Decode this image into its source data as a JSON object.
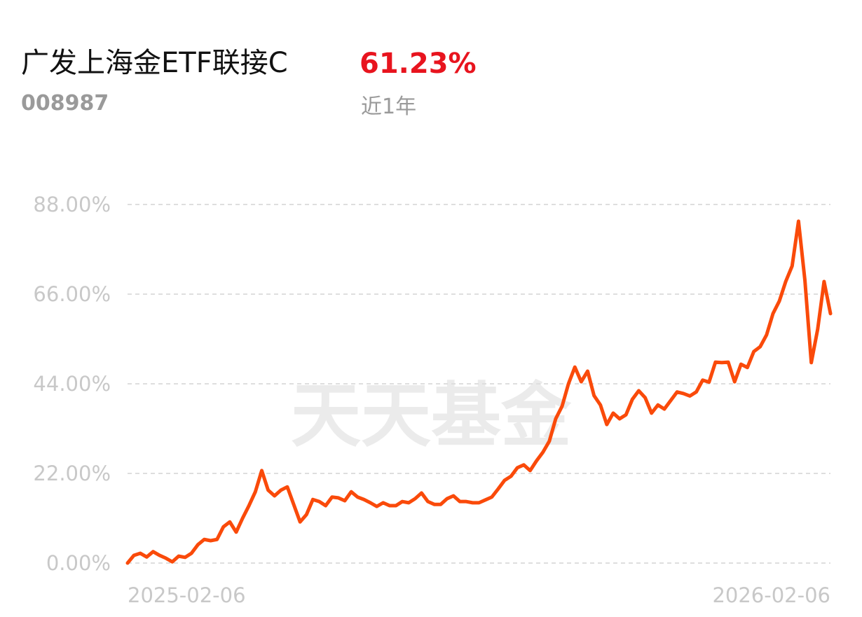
{
  "header": {
    "title": "广发上海金ETF联接C",
    "return": "61.23%",
    "code": "008987",
    "period": "近1年"
  },
  "chart_data": {
    "type": "line",
    "watermark": "天天基金",
    "color": "#fa4a0a",
    "grid": true,
    "ylim": [
      0,
      88
    ],
    "yticks": [
      {
        "value": 0,
        "label": "0.00%"
      },
      {
        "value": 22,
        "label": "22.00%"
      },
      {
        "value": 44,
        "label": "44.00%"
      },
      {
        "value": 66,
        "label": "66.00%"
      },
      {
        "value": 88,
        "label": "88.00%"
      }
    ],
    "categories": [
      "2025-02-06",
      null,
      null,
      null,
      null,
      null,
      null,
      null,
      null,
      null,
      null,
      null,
      null,
      null,
      null,
      null,
      null,
      null,
      null,
      null,
      null,
      null,
      null,
      null,
      null,
      null,
      null,
      null,
      null,
      null,
      null,
      null,
      null,
      null,
      null,
      null,
      null,
      null,
      null,
      null,
      null,
      null,
      null,
      null,
      null,
      null,
      null,
      null,
      null,
      null,
      null,
      null,
      null,
      null,
      null,
      null,
      null,
      null,
      null,
      null,
      null,
      null,
      null,
      null,
      null,
      null,
      null,
      null,
      null,
      null,
      null,
      null,
      null,
      null,
      null,
      null,
      null,
      null,
      null,
      null,
      null,
      null,
      null,
      null,
      null,
      null,
      null,
      null,
      null,
      null,
      null,
      null,
      null,
      null,
      null,
      null,
      null,
      null,
      null,
      null,
      null,
      null,
      null,
      null,
      null,
      null,
      null,
      null,
      null,
      null,
      "2026-02-06"
    ],
    "values": [
      0,
      1.9,
      2.4,
      1.5,
      2.8,
      1.9,
      1.2,
      0.3,
      1.7,
      1.4,
      2.4,
      4.5,
      5.8,
      5.5,
      5.8,
      8.9,
      10.1,
      7.6,
      11.0,
      14.1,
      17.5,
      22.7,
      17.9,
      16.5,
      17.9,
      18.7,
      14.4,
      10.1,
      11.9,
      15.6,
      15.1,
      14.1,
      16.2,
      16.0,
      15.3,
      17.5,
      16.2,
      15.6,
      14.8,
      13.9,
      14.8,
      14.1,
      14.1,
      15.1,
      14.8,
      15.8,
      17.2,
      15.1,
      14.4,
      14.4,
      15.8,
      16.5,
      15.1,
      15.1,
      14.8,
      14.8,
      15.5,
      16.2,
      18.2,
      20.3,
      21.3,
      23.4,
      24.1,
      22.7,
      25.1,
      27.2,
      29.9,
      35.4,
      38.5,
      44.0,
      48.1,
      44.5,
      47.1,
      41.1,
      38.8,
      34.0,
      36.8,
      35.4,
      36.4,
      40.2,
      42.3,
      40.6,
      36.8,
      38.8,
      37.8,
      39.9,
      42.0,
      41.6,
      41.0,
      42.0,
      44.9,
      44.4,
      49.3,
      49.2,
      49.3,
      44.5,
      48.8,
      48.0,
      51.9,
      53.1,
      56.0,
      61.2,
      64.3,
      69.1,
      72.9,
      83.9,
      69.4,
      49.2,
      57.4,
      69.1,
      61.23
    ]
  }
}
